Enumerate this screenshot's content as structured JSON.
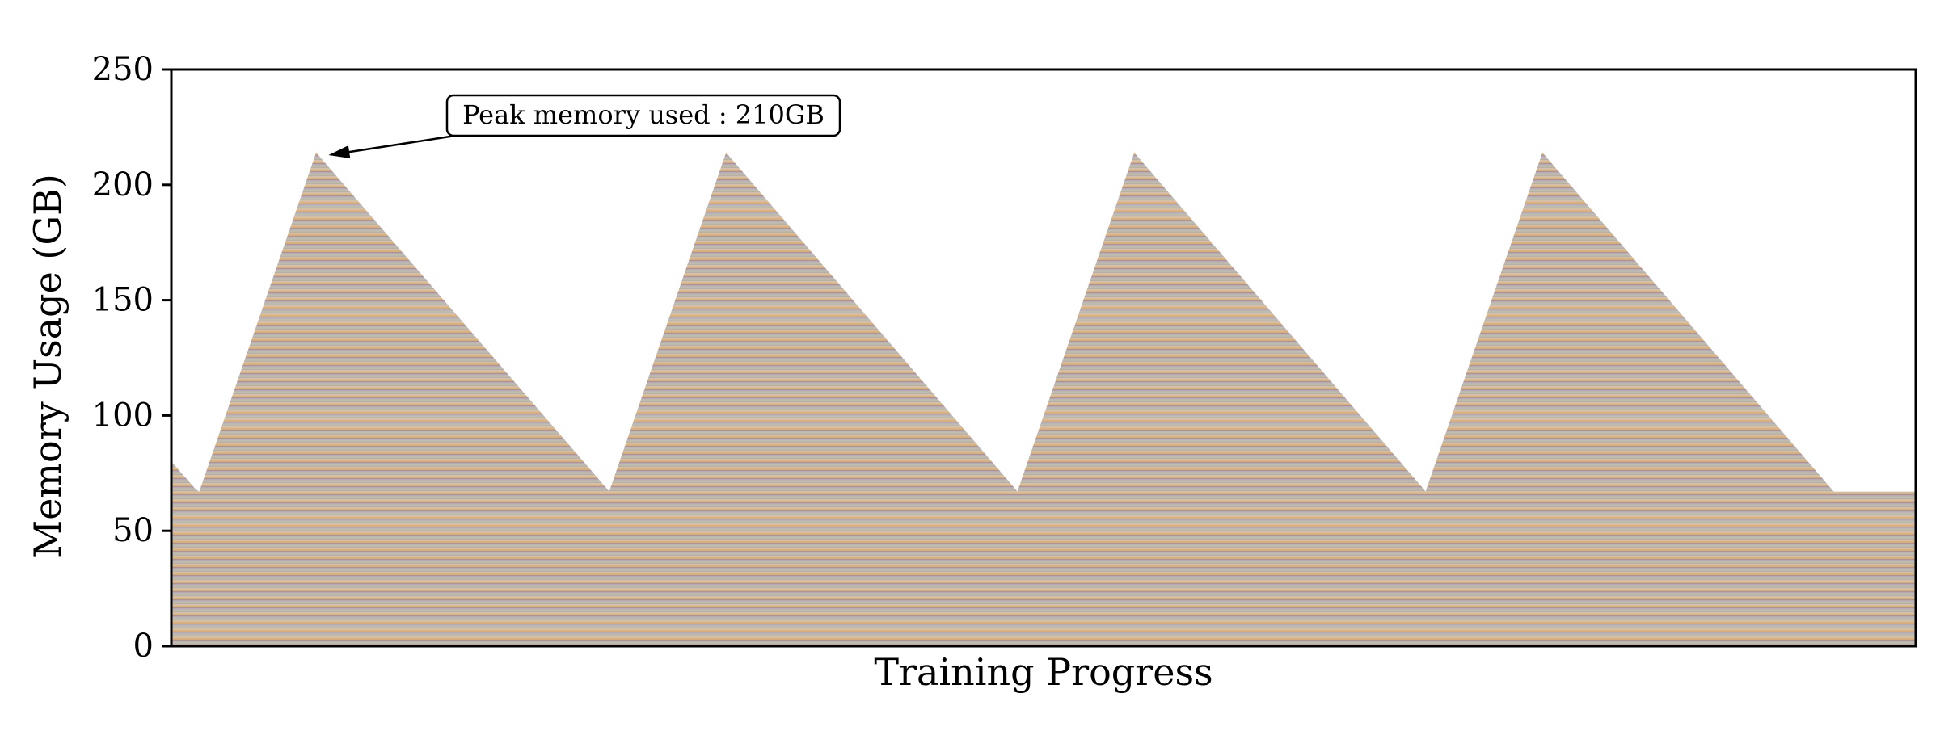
{
  "chart_data": {
    "type": "area",
    "title": "",
    "xlabel": "Training Progress",
    "ylabel": "Memory Usage (GB)",
    "ylim": [
      0,
      250
    ],
    "yticks": [
      0,
      50,
      100,
      150,
      200,
      250
    ],
    "xlim": [
      0,
      1000
    ],
    "x_tick_labels_shown": false,
    "grid": false,
    "legend": "none",
    "series": [
      {
        "x": [
          0,
          14,
          16,
          83,
          250,
          251,
          318,
          484,
          485,
          552,
          718,
          719,
          786,
          953,
          1000
        ],
        "values": [
          80,
          68,
          67,
          214,
          68,
          67,
          214,
          68,
          67,
          214,
          68,
          67,
          214,
          67,
          67
        ]
      }
    ],
    "baseline_memory_gb": 67,
    "peak_memory_gb": 214,
    "band_colors": [
      "#e8a04a",
      "#c9a36b",
      "#6e8fb8",
      "#d98b8b",
      "#9bbd7e",
      "#c6a0c7",
      "#d4a86a",
      "#89a9c9",
      "#e2b27a",
      "#b9b9b9"
    ],
    "annotations": [
      {
        "text": "Peak memory used : 210GB",
        "target_x": 91,
        "target_y": 213
      }
    ]
  }
}
